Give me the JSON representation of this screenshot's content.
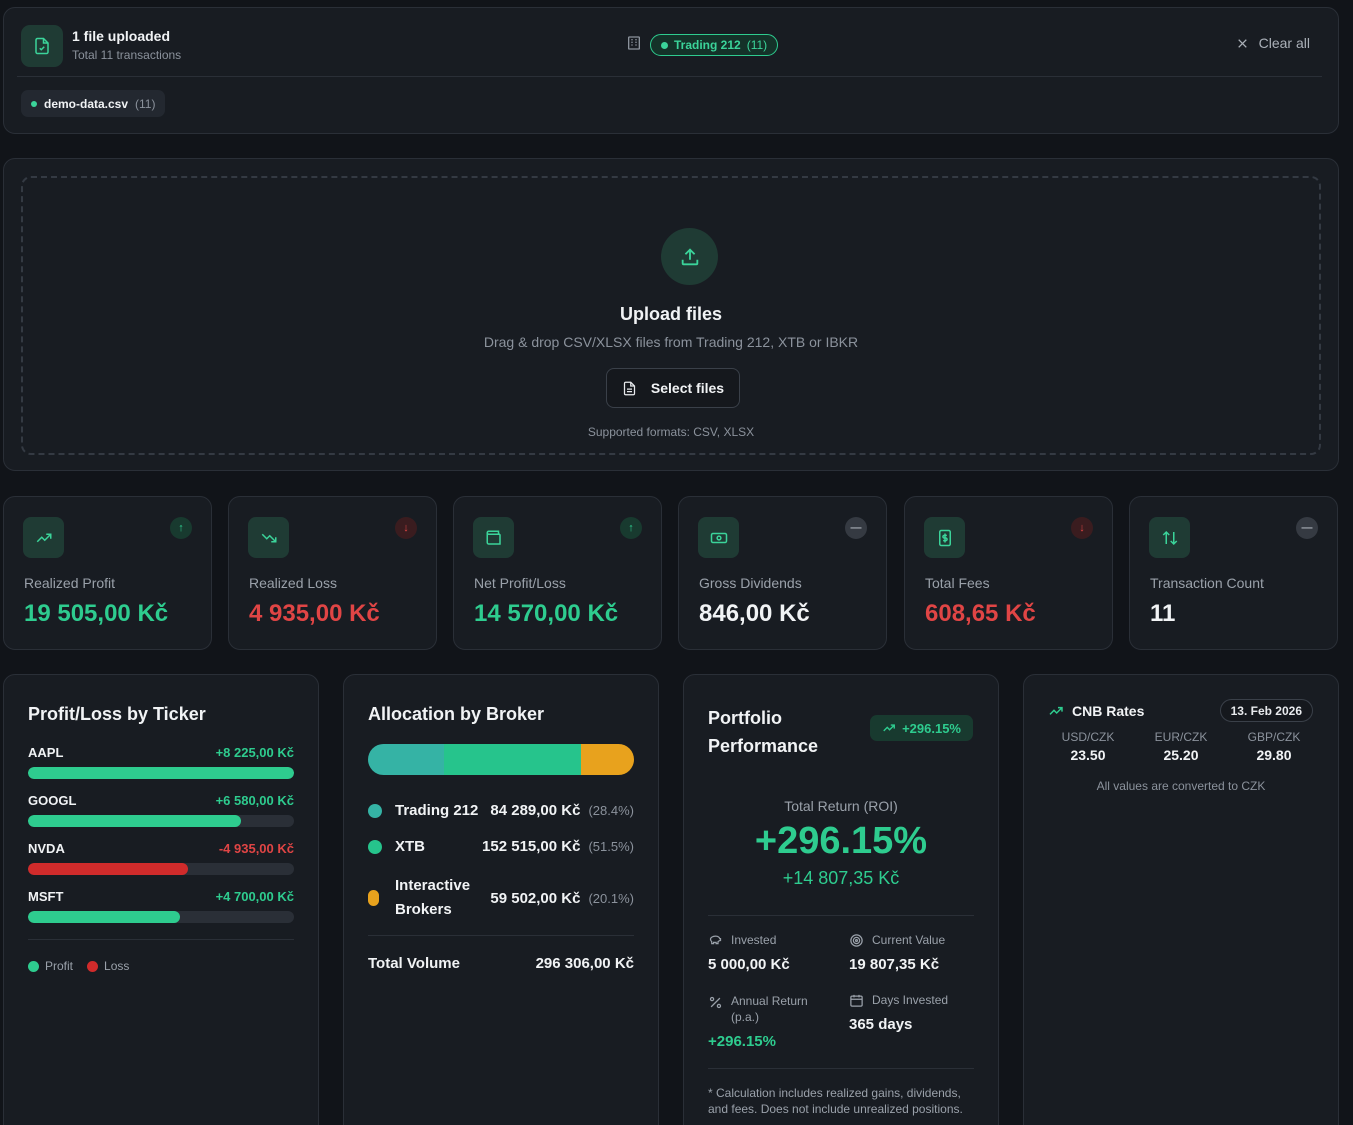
{
  "header": {
    "title": "1 file uploaded",
    "subtitle": "Total 11 transactions",
    "broker_label": "Trading 212",
    "broker_count": "(11)",
    "clear_label": "Clear all",
    "file_name": "demo-data.csv",
    "file_count": "(11)"
  },
  "upload": {
    "title": "Upload files",
    "subtitle": "Drag & drop CSV/XLSX files from Trading 212, XTB or IBKR",
    "button_label": "Select files",
    "formats": "Supported formats: CSV, XLSX"
  },
  "stats": [
    {
      "label": "Realized Profit",
      "value": "19 505,00 Kč",
      "trend": "↑",
      "color": "#2ecc8f"
    },
    {
      "label": "Realized Loss",
      "value": "4 935,00 Kč",
      "trend": "↓",
      "color": "#e04545"
    },
    {
      "label": "Net Profit/Loss",
      "value": "14 570,00 Kč",
      "trend": "↑",
      "color": "#2ecc8f"
    },
    {
      "label": "Gross Dividends",
      "value": "846,00 Kč",
      "trend": "—",
      "color": "#f1f3f5"
    },
    {
      "label": "Total Fees",
      "value": "608,65 Kč",
      "trend": "↓",
      "color": "#e04545"
    },
    {
      "label": "Transaction Count",
      "value": "11",
      "trend": "—",
      "color": "#f1f3f5"
    }
  ],
  "tickers": {
    "title": "Profit/Loss by Ticker",
    "items": [
      {
        "name": "AAPL",
        "value": "+8 225,00 Kč",
        "fill": 1.0,
        "type": "profit"
      },
      {
        "name": "GOOGL",
        "value": "+6 580,00 Kč",
        "fill": 0.8,
        "type": "profit"
      },
      {
        "name": "NVDA",
        "value": "-4 935,00 Kč",
        "fill": 0.6,
        "type": "loss"
      },
      {
        "name": "MSFT",
        "value": "+4 700,00 Kč",
        "fill": 0.57,
        "type": "profit"
      }
    ],
    "legend_profit": "Profit",
    "legend_loss": "Loss"
  },
  "allocation": {
    "title": "Allocation by Broker",
    "brokers": [
      {
        "name": "Trading 212",
        "amount": "84 289,00 Kč",
        "pct": "(28.4%)",
        "share": 28.4,
        "color": "#35b3a5"
      },
      {
        "name": "XTB",
        "amount": "152 515,00 Kč",
        "pct": "(51.5%)",
        "share": 51.5,
        "color": "#26c48c"
      },
      {
        "name_line1": "Interactive",
        "name_line2": "Brokers",
        "amount": "59 502,00 Kč",
        "pct": "(20.1%)",
        "share": 20.1,
        "color": "#e8a21d"
      }
    ],
    "total_label": "Total Volume",
    "total_value": "296 306,00 Kč"
  },
  "performance": {
    "title_line1": "Portfolio",
    "title_line2": "Performance",
    "badge": "+296.15%",
    "roi_label": "Total Return (ROI)",
    "roi_value": "+296.15%",
    "roi_amount": "+14 807,35 Kč",
    "invested_label": "Invested",
    "invested_value": "5 000,00 Kč",
    "current_label": "Current Value",
    "current_value": "19 807,35 Kč",
    "annual_label_line1": "Annual Return",
    "annual_label_line2": "(p.a.)",
    "annual_value": "+296.15%",
    "days_label": "Days Invested",
    "days_value": "365 days",
    "note_line1": "* Calculation includes realized gains, dividends,",
    "note_line2": "and fees. Does not include unrealized positions."
  },
  "cnb": {
    "title": "CNB Rates",
    "date": "13. Feb 2026",
    "rates": [
      {
        "pair": "USD/CZK",
        "value": "23.50"
      },
      {
        "pair": "EUR/CZK",
        "value": "25.20"
      },
      {
        "pair": "GBP/CZK",
        "value": "29.80"
      }
    ],
    "note": "All values are converted to CZK"
  },
  "colors": {
    "accent": "#2ecc8f",
    "loss": "#e04545",
    "warning": "#e8a21d"
  }
}
